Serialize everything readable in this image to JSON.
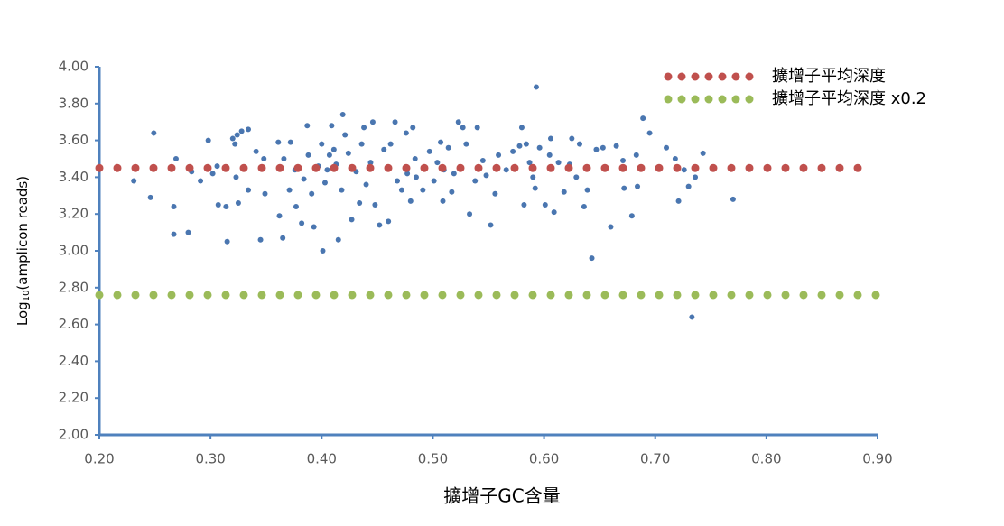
{
  "chart_data": {
    "type": "scatter",
    "xlim": [
      0.2,
      0.9
    ],
    "ylim": [
      2.0,
      4.0
    ],
    "xticks": [
      {
        "value": 0.2,
        "label": "0.20"
      },
      {
        "value": 0.3,
        "label": "0.30"
      },
      {
        "value": 0.4,
        "label": "0.40"
      },
      {
        "value": 0.5,
        "label": "0.50"
      },
      {
        "value": 0.6,
        "label": "0.60"
      },
      {
        "value": 0.7,
        "label": "0.70"
      },
      {
        "value": 0.8,
        "label": "0.80"
      },
      {
        "value": 0.9,
        "label": "0.90"
      }
    ],
    "yticks": [
      {
        "value": 2.0,
        "label": "2.00"
      },
      {
        "value": 2.2,
        "label": "2.20"
      },
      {
        "value": 2.4,
        "label": "2.40"
      },
      {
        "value": 2.6,
        "label": "2.60"
      },
      {
        "value": 2.8,
        "label": "2.80"
      },
      {
        "value": 3.0,
        "label": "3.00"
      },
      {
        "value": 3.2,
        "label": "3.20"
      },
      {
        "value": 3.4,
        "label": "3.40"
      },
      {
        "value": 3.6,
        "label": "3.60"
      },
      {
        "value": 3.8,
        "label": "3.80"
      },
      {
        "value": 4.0,
        "label": "4.00"
      }
    ],
    "xlabel": "擴增子GC含量",
    "ylabel_parts": [
      "Log",
      "10",
      "(amplicon reads)"
    ],
    "color": "#4a76b0",
    "axis_color": "#4f81bd",
    "legend_position": "top-right",
    "x": [
      0.249,
      0.246,
      0.231,
      0.267,
      0.267,
      0.28,
      0.269,
      0.283,
      0.291,
      0.298,
      0.306,
      0.302,
      0.307,
      0.314,
      0.315,
      0.32,
      0.324,
      0.328,
      0.334,
      0.322,
      0.323,
      0.325,
      0.334,
      0.341,
      0.345,
      0.349,
      0.348,
      0.361,
      0.362,
      0.365,
      0.366,
      0.371,
      0.372,
      0.376,
      0.377,
      0.382,
      0.384,
      0.387,
      0.388,
      0.391,
      0.393,
      0.397,
      0.4,
      0.401,
      0.403,
      0.405,
      0.407,
      0.409,
      0.411,
      0.413,
      0.415,
      0.418,
      0.419,
      0.421,
      0.424,
      0.427,
      0.431,
      0.434,
      0.436,
      0.438,
      0.44,
      0.444,
      0.446,
      0.448,
      0.452,
      0.456,
      0.46,
      0.462,
      0.466,
      0.468,
      0.472,
      0.476,
      0.477,
      0.48,
      0.482,
      0.484,
      0.485,
      0.491,
      0.497,
      0.501,
      0.504,
      0.507,
      0.509,
      0.51,
      0.514,
      0.517,
      0.519,
      0.523,
      0.527,
      0.53,
      0.533,
      0.538,
      0.54,
      0.545,
      0.548,
      0.552,
      0.556,
      0.559,
      0.566,
      0.572,
      0.578,
      0.58,
      0.582,
      0.584,
      0.587,
      0.59,
      0.592,
      0.593,
      0.596,
      0.601,
      0.605,
      0.606,
      0.609,
      0.613,
      0.618,
      0.623,
      0.625,
      0.629,
      0.632,
      0.636,
      0.639,
      0.643,
      0.647,
      0.653,
      0.66,
      0.665,
      0.671,
      0.672,
      0.679,
      0.683,
      0.684,
      0.689,
      0.695,
      0.71,
      0.718,
      0.721,
      0.726,
      0.73,
      0.736,
      0.743,
      0.77,
      0.733
    ],
    "values": [
      3.64,
      3.29,
      3.38,
      3.24,
      3.09,
      3.1,
      3.5,
      3.43,
      3.38,
      3.6,
      3.46,
      3.42,
      3.25,
      3.24,
      3.05,
      3.61,
      3.63,
      3.65,
      3.66,
      3.58,
      3.4,
      3.26,
      3.33,
      3.54,
      3.06,
      3.31,
      3.5,
      3.59,
      3.19,
      3.07,
      3.5,
      3.33,
      3.59,
      3.44,
      3.24,
      3.15,
      3.39,
      3.68,
      3.52,
      3.31,
      3.13,
      3.46,
      3.58,
      3.0,
      3.37,
      3.44,
      3.52,
      3.68,
      3.55,
      3.47,
      3.06,
      3.33,
      3.74,
      3.63,
      3.53,
      3.17,
      3.43,
      3.26,
      3.58,
      3.67,
      3.36,
      3.48,
      3.7,
      3.25,
      3.14,
      3.55,
      3.16,
      3.58,
      3.7,
      3.38,
      3.33,
      3.64,
      3.42,
      3.27,
      3.67,
      3.5,
      3.4,
      3.33,
      3.54,
      3.38,
      3.48,
      3.59,
      3.27,
      3.44,
      3.56,
      3.32,
      3.42,
      3.7,
      3.67,
      3.58,
      3.2,
      3.38,
      3.67,
      3.49,
      3.41,
      3.14,
      3.31,
      3.52,
      3.44,
      3.54,
      3.57,
      3.67,
      3.25,
      3.58,
      3.48,
      3.4,
      3.34,
      3.89,
      3.56,
      3.25,
      3.52,
      3.61,
      3.21,
      3.48,
      3.32,
      3.47,
      3.61,
      3.4,
      3.58,
      3.24,
      3.33,
      2.96,
      3.55,
      3.56,
      3.13,
      3.57,
      3.49,
      3.34,
      3.19,
      3.52,
      3.35,
      3.72,
      3.64,
      3.56,
      3.5,
      3.27,
      3.44,
      3.35,
      3.4,
      3.53,
      3.28,
      2.64
    ],
    "series": [
      {
        "name": "擴增子平均深度",
        "type": "line",
        "style": "dotted",
        "color": "#c0504d",
        "x": [
          0.2,
          0.89
        ],
        "values": [
          3.45,
          3.45
        ]
      },
      {
        "name": "擴增子平均深度 x0.2",
        "type": "line",
        "style": "dotted",
        "color": "#9bbb59",
        "x": [
          0.2,
          0.9
        ],
        "values": [
          2.76,
          2.76
        ]
      }
    ]
  }
}
